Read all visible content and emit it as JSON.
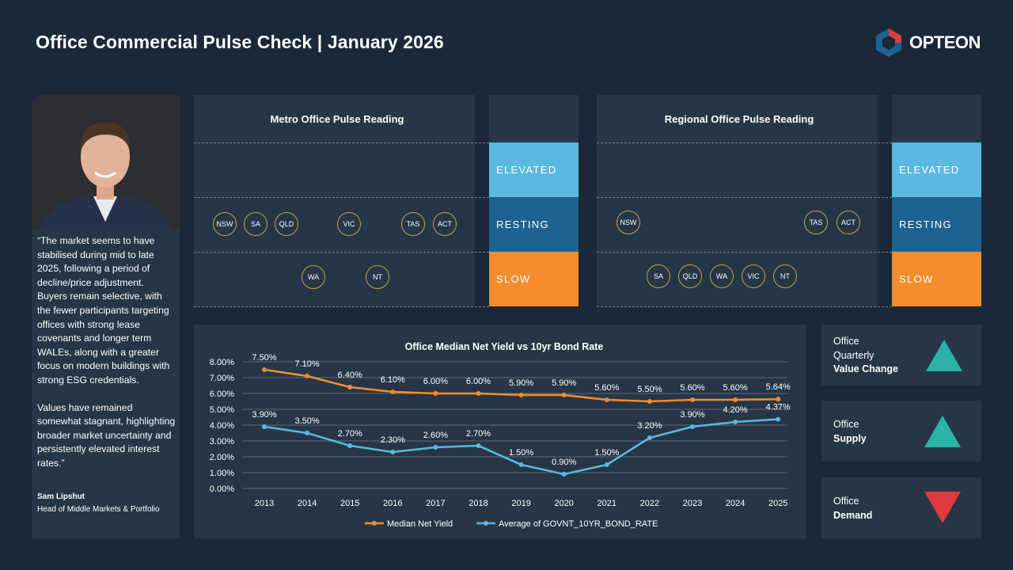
{
  "title": "Office Commercial Pulse Check | January 2026",
  "logo": {
    "text": "OPTEON"
  },
  "quote": {
    "p1": "“The market seems to have stabilised during mid to late 2025, following a period of decline/price adjustment. Buyers remain selective, with the fewer participants targeting offices with strong lease covenants and longer term WALEs, along with a greater focus on modern buildings with strong ESG credentials.",
    "p2": "Values have remained somewhat stagnant, highlighting broader market uncertainty and persistently elevated interest rates.”",
    "author": "Sam Lipshut",
    "role": "Head of Middle Markets & Portfolio"
  },
  "metro": {
    "title": "Metro Office Pulse Reading",
    "resting": [
      "NSW",
      "SA",
      "QLD",
      "VIC",
      "TAS",
      "ACT"
    ],
    "slow": [
      "WA",
      "NT"
    ]
  },
  "regional": {
    "title": "Regional Office Pulse Reading",
    "resting": [
      "NSW",
      "TAS",
      "ACT"
    ],
    "slow": [
      "SA",
      "QLD",
      "WA",
      "VIC",
      "NT"
    ]
  },
  "bands": {
    "elevated": "ELEVATED",
    "resting": "RESTING",
    "slow": "SLOW"
  },
  "indicators": [
    {
      "line1": "Office",
      "line2": "Quarterly",
      "bold": "Value Change",
      "direction": "up",
      "color": "#2ab3a6"
    },
    {
      "line1": "Office",
      "line2": "",
      "bold": "Supply",
      "direction": "up",
      "color": "#2ab3a6"
    },
    {
      "line1": "Office",
      "line2": "",
      "bold": "Demand",
      "direction": "down",
      "color": "#e03a3e"
    }
  ],
  "chart_data": {
    "type": "line",
    "title": "Office Median Net Yield vs 10yr Bond Rate",
    "categories": [
      "2013",
      "2014",
      "2015",
      "2016",
      "2017",
      "2018",
      "2019",
      "2020",
      "2021",
      "2022",
      "2023",
      "2024",
      "2025"
    ],
    "series": [
      {
        "name": "Median Net Yield",
        "color": "#f48d2e",
        "values": [
          7.5,
          7.1,
          6.4,
          6.1,
          6.0,
          6.0,
          5.9,
          5.9,
          5.6,
          5.5,
          5.6,
          5.6,
          5.64
        ],
        "labels": [
          "7.50%",
          "7.10%",
          "6.40%",
          "6.10%",
          "6.00%",
          "6.00%",
          "5.90%",
          "5.90%",
          "5.60%",
          "5.50%",
          "5.60%",
          "5.60%",
          "5.64%"
        ]
      },
      {
        "name": "Average of GOVNT_10YR_BOND_RATE",
        "color": "#5bb8e0",
        "values": [
          3.9,
          3.5,
          2.7,
          2.3,
          2.6,
          2.7,
          1.5,
          0.9,
          1.5,
          3.2,
          3.9,
          4.2,
          4.37
        ],
        "labels": [
          "3.90%",
          "3.50%",
          "2.70%",
          "2.30%",
          "2.60%",
          "2.70%",
          "1.50%",
          "0.90%",
          "1.50%",
          "3.20%",
          "3.90%",
          "4.20%",
          "4.37%"
        ]
      }
    ],
    "yticks": [
      "0.00%",
      "1.00%",
      "2.00%",
      "3.00%",
      "4.00%",
      "5.00%",
      "6.00%",
      "7.00%",
      "8.00%"
    ],
    "ylim": [
      0,
      8
    ],
    "legend": "bottom"
  }
}
